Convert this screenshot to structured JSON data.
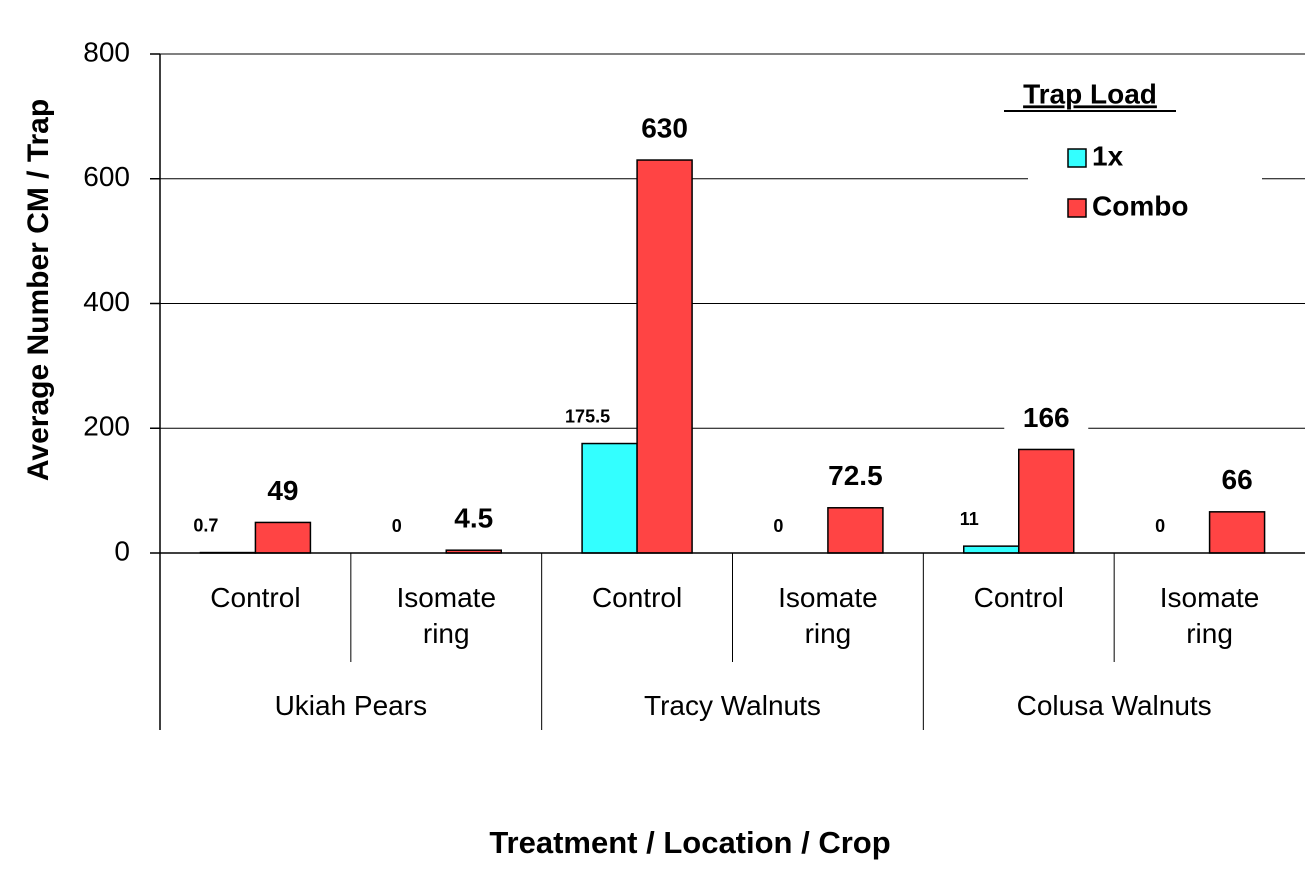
{
  "chart_data": {
    "type": "bar",
    "ylabel": "Average Number CM / Trap",
    "xlabel": "Treatment / Location / Crop",
    "categories": [
      "Control",
      "Isomate ring",
      "Control",
      "Isomate ring",
      "Control",
      "Isomate ring"
    ],
    "category_groups": [
      "Ukiah Pears",
      "Tracy Walnuts",
      "Colusa Walnuts"
    ],
    "series": [
      {
        "name": "1x",
        "color": "#33ffff",
        "values": [
          0.7,
          0,
          175.5,
          0,
          11,
          0
        ]
      },
      {
        "name": "Combo",
        "color": "#ff4444",
        "values": [
          49,
          4.5,
          630,
          72.5,
          166,
          66
        ]
      }
    ],
    "legend_title": "Trap Load",
    "legend": "upper right",
    "ylim": [
      0,
      800
    ],
    "yticks": [
      0,
      200,
      400,
      600,
      800
    ],
    "grid": true
  }
}
